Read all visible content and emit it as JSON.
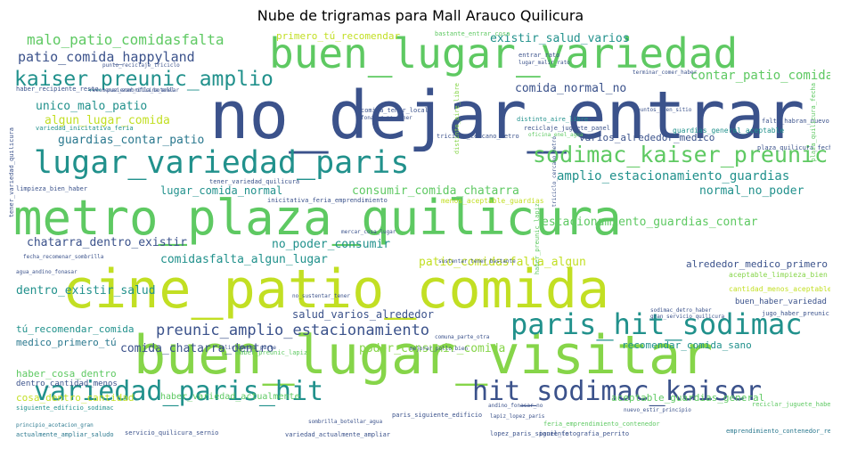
{
  "title": "Nube de trigramas para Mall Arauco Quilicura",
  "palette": {
    "yellow": "#c2df23",
    "green": "#5ec962",
    "teal": "#21918c",
    "blue": "#3b528b",
    "purple": "#472d7b",
    "lime": "#86d549",
    "aqua": "#2a788e"
  },
  "words": [
    "no_dejar_entrar",
    "metro_plaza_quilicura",
    "cine_patio_comida",
    "buen_lugar_visitar",
    "buen_lugar_variedad",
    "lugar_variedad_paris",
    "kaiser_preunic_amplio",
    "paris_hit_sodimac",
    "sodimac_kaiser_preunic",
    "hit_sodimac_kaiser",
    "variedad_paris_hit",
    "malo_patio_comidasfalta",
    "patio_comida_happyland",
    "existir_salud_varios",
    "contar_patio_comida",
    "comida_normal_no",
    "unico_malo_patio",
    "algun_lugar_comida",
    "guardias_contar_patio",
    "amplio_estacionamiento_guardias",
    "preunic_amplio_estacionamiento",
    "lugar_comida_normal",
    "consumir_comida_chatarra",
    "normal_no_poder",
    "chatarra_dentro_existir",
    "no_poder_consumir",
    "estacionamiento_guardias_contar",
    "comidasfalta_algun_lugar",
    "patio_comidasfalta_algun",
    "alrededor_medico_primero",
    "dentro_existir_salud",
    "salud_varios_alrededor",
    "tú_recomendar_comida",
    "medico_primero_tú",
    "comida_chatarra_dentro",
    "poder_consumir_comida",
    "recomendar_comida_sano",
    "haber_cosa_dentro",
    "cosa_dentro_cantidad",
    "varios_alrededor_medico",
    "primero_tú_recomendar",
    "aceptable_guardias_general",
    "haber_variedad_actualmente",
    "bastante_entrar_cosa",
    "menos_aceptable_guardias",
    "tener_variedad_quilicura",
    "inicitativa_feria_emprendimiento",
    "entrar_rato",
    "buen_haber_variedad",
    "cantidad_menos_aceptable",
    "aceptable_limpieza_bien",
    "dentro_cantidad_menos",
    "recomenar_sombrilla_botellar",
    "limpieza_bien_haber",
    "comida_tener_local",
    "fonasur_no_tener",
    "reciclaje_juguete_panel",
    "distinto_aire_libre",
    "lugar_malir_rato",
    "triciclo_cercano_metro",
    "haber_recipiente_resto",
    "punto_reciclaje_triciclo",
    "variedad_inicitativa_feria",
    "guardias_general_aceptable",
    "lopez_paris_siguiente",
    "sodimac_detro_haber",
    "panel_fotografia_perrito",
    "paris_siguiente_edificio",
    "feria_emprendimiento_contenedor",
    "nuevo_estir_principio",
    "gran_servicio_quilicura",
    "andino_fonasar_no",
    "lapiz_lopez_paris",
    "haber_preunic_lapiz",
    "servicio_quilicura_sernio",
    "actualmente_ampliar_saludo",
    "variedad_actualmente_ampliar",
    "principio_acotacion_gran",
    "agua_andino_fonasar",
    "fecha_recomenar_sombrilla",
    "jugo_haber_preunic",
    "siguiente_edificio_sodimac",
    "comuna_parte_otra",
    "salir_comuna_parte",
    "sombrilla_botellar_agua",
    "mejorar_pollo_bien",
    "emprendimiento_contenedor_reciclaje",
    "oficina_enel_agua",
    "plaza_quilicura_fecha",
    "falta_habran_nuevo",
    "puntos_buen_sitio",
    "pusierar_oficina_enel",
    "terminar_comer_haber",
    "reciclar_juguete_haber",
    "mercar_cosa_lugar",
    "no_sustentar_tener",
    "sustentar_tener_bastante"
  ]
}
